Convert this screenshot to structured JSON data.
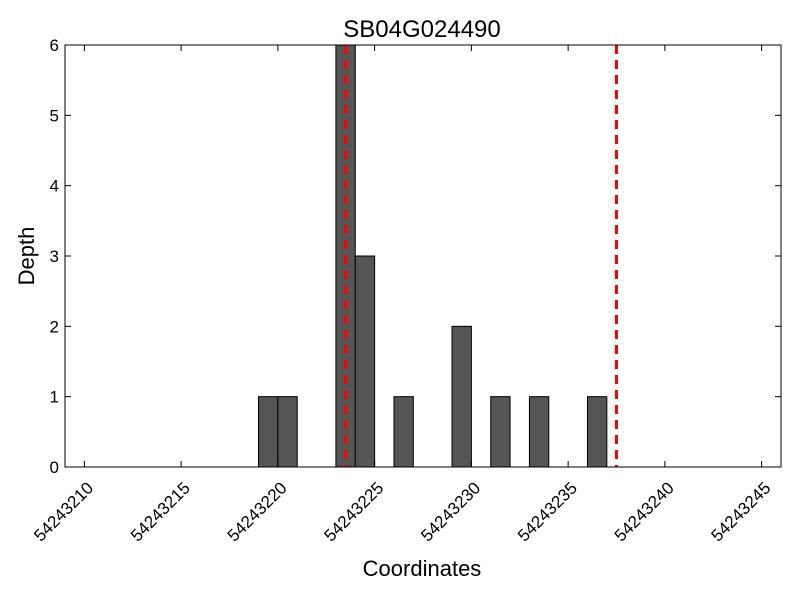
{
  "chart_data": {
    "type": "bar",
    "title": "SB04G024490",
    "xlabel": "Coordinates",
    "ylabel": "Depth",
    "xlim": [
      54243209,
      54243246
    ],
    "ylim": [
      0,
      6
    ],
    "x_ticks": [
      54243210,
      54243215,
      54243220,
      54243225,
      54243230,
      54243235,
      54243240,
      54243245
    ],
    "y_ticks": [
      0,
      1,
      2,
      3,
      4,
      5,
      6
    ],
    "bar_width": 1,
    "x": [
      54243219,
      54243220,
      54243223,
      54243224,
      54243226,
      54243229,
      54243231,
      54243233,
      54243236
    ],
    "values": [
      1,
      1,
      6,
      3,
      1,
      2,
      1,
      1,
      1
    ],
    "markers": [
      54243223.5,
      54243237.5
    ],
    "bar_color": "#555555",
    "marker_color": "#ff0000",
    "grid": false,
    "legend": "none"
  }
}
